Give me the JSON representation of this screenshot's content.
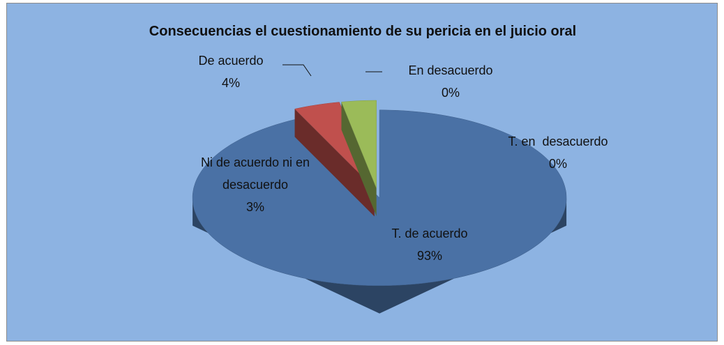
{
  "chart_data": {
    "type": "pie3d",
    "title": "Consecuencias el cuestionamiento de su pericia en el juicio oral",
    "categories": [
      "T. de acuerdo",
      "De acuerdo",
      "Ni de acuerdo ni en desacuerdo",
      "En desacuerdo",
      "T. en  desacuerdo"
    ],
    "values": [
      93,
      4,
      3,
      0,
      0
    ],
    "value_labels": [
      "93%",
      "4%",
      "3%",
      "0%",
      "0%"
    ],
    "colors": [
      "#4a71a5",
      "#c0504d",
      "#9bbb59",
      "#8064a2",
      "#4bacc6"
    ]
  }
}
